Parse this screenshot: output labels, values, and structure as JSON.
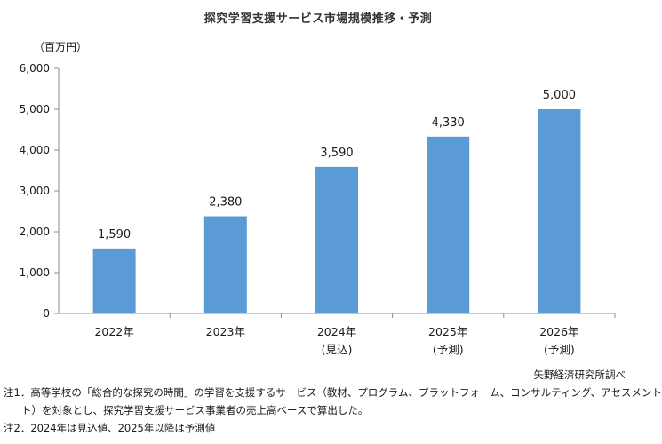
{
  "chart_data": {
    "type": "bar",
    "title": "探究学習支援サービス市場規模推移・予測",
    "ylabel": "（百万円）",
    "xlabel": "",
    "categories": [
      "2022年",
      "2023年",
      "2024年",
      "2025年",
      "2026年"
    ],
    "category_sublabels": [
      "",
      "",
      "(見込)",
      "(予測)",
      "(予測)"
    ],
    "values": [
      1590,
      2380,
      3590,
      4330,
      5000
    ],
    "value_labels": [
      "1,590",
      "2,380",
      "3,590",
      "4,330",
      "5,000"
    ],
    "ylim": [
      0,
      6000
    ],
    "yticks": [
      0,
      1000,
      2000,
      3000,
      4000,
      5000,
      6000
    ],
    "ytick_labels": [
      "0",
      "1,000",
      "2,000",
      "3,000",
      "4,000",
      "5,000",
      "6,000"
    ],
    "grid": false,
    "bar_color": "#5b9bd5"
  },
  "source": "矢野経済研究所調べ",
  "notes": [
    "注1．高等学校の「総合的な探究の時間」の学習を支援するサービス（教材、プログラム、プラットフォーム、コンサルティング、アセスメント",
    "ト）を対象とし、探究学習支援サービス事業者の売上高ベースで算出した。",
    "注2．2024年は見込値、2025年以降は予測値"
  ]
}
